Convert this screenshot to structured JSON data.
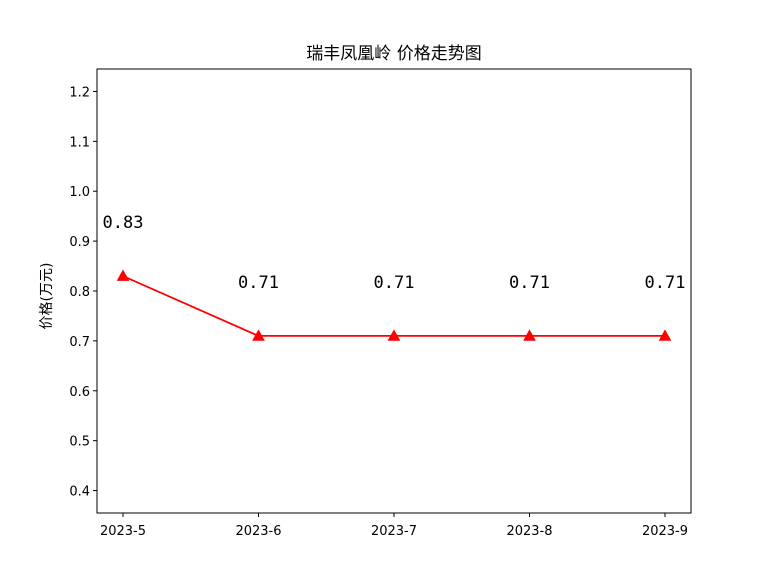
{
  "chart_data": {
    "type": "line",
    "title": "瑞丰凤凰岭 价格走势图",
    "xlabel": "",
    "ylabel": "价格(万元)",
    "categories": [
      "2023-5",
      "2023-6",
      "2023-7",
      "2023-8",
      "2023-9"
    ],
    "series": [
      {
        "values": [
          0.83,
          0.71,
          0.71,
          0.71,
          0.71
        ],
        "labels": [
          "0.83",
          "0.71",
          "0.71",
          "0.71",
          "0.71"
        ],
        "color": "#ff0000",
        "marker": "triangle-up"
      }
    ],
    "ylim": [
      0.355,
      1.245
    ],
    "yticks": [
      "0.4",
      "0.5",
      "0.6",
      "0.7",
      "0.8",
      "0.9",
      "1.0",
      "1.1",
      "1.2"
    ],
    "grid": false,
    "legend": "none"
  }
}
